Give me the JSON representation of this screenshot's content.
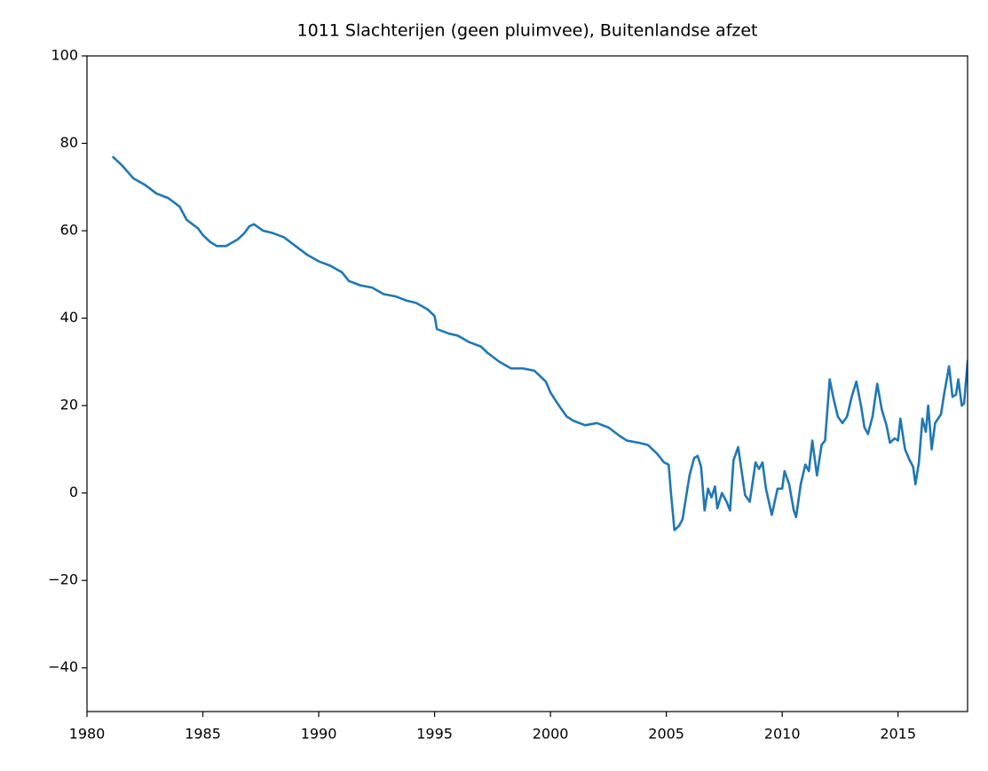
{
  "chart_data": {
    "type": "line",
    "title": "1011 Slachterijen (geen pluimvee), Buitenlandse afzet",
    "x": [
      1981.1,
      1981.5,
      1982,
      1982.5,
      1983,
      1983.5,
      1984,
      1984.3,
      1984.8,
      1985,
      1985.3,
      1985.6,
      1986,
      1986.5,
      1986.8,
      1987,
      1987.2,
      1987.6,
      1988,
      1988.5,
      1989,
      1989.5,
      1990,
      1990.5,
      1991,
      1991.3,
      1991.8,
      1992.3,
      1992.8,
      1993.3,
      1993.8,
      1994.2,
      1994.7,
      1995,
      1995.1,
      1995.6,
      1996,
      1996.5,
      1997,
      1997.3,
      1997.8,
      1998.3,
      1998.8,
      1999.3,
      1999.8,
      2000,
      2000.3,
      2000.7,
      2001,
      2001.5,
      2002,
      2002.5,
      2003,
      2003.3,
      2003.8,
      2004.2,
      2004.6,
      2004.9,
      2005.1,
      2005.2,
      2005.35,
      2005.55,
      2005.7,
      2006,
      2006.2,
      2006.35,
      2006.5,
      2006.65,
      2006.8,
      2006.95,
      2007.1,
      2007.2,
      2007.4,
      2007.6,
      2007.75,
      2007.9,
      2008.1,
      2008.25,
      2008.4,
      2008.6,
      2008.85,
      2009,
      2009.15,
      2009.3,
      2009.55,
      2009.8,
      2010,
      2010.1,
      2010.3,
      2010.5,
      2010.6,
      2010.8,
      2011,
      2011.15,
      2011.3,
      2011.5,
      2011.7,
      2011.85,
      2012.05,
      2012.2,
      2012.4,
      2012.6,
      2012.8,
      2013,
      2013.2,
      2013.4,
      2013.55,
      2013.7,
      2013.9,
      2014.1,
      2014.3,
      2014.5,
      2014.65,
      2014.85,
      2015,
      2015.1,
      2015.3,
      2015.5,
      2015.65,
      2015.75,
      2015.9,
      2016.05,
      2016.2,
      2016.3,
      2016.45,
      2016.6,
      2016.85,
      2017,
      2017.2,
      2017.35,
      2017.5,
      2017.6,
      2017.75,
      2017.85,
      2018,
      2018.1
    ],
    "series": [
      {
        "color": "#1f77b4",
        "values": [
          77,
          75,
          72,
          70.5,
          68.5,
          67.5,
          65.5,
          62.5,
          60.5,
          59,
          57.5,
          56.5,
          56.5,
          58,
          59.5,
          61,
          61.5,
          60,
          59.5,
          58.5,
          56.5,
          54.5,
          53,
          52,
          50.5,
          48.5,
          47.5,
          47,
          45.5,
          45,
          44,
          43.5,
          42,
          40.5,
          37.5,
          36.5,
          36,
          34.5,
          33.5,
          32,
          30,
          28.5,
          28.5,
          28,
          25.5,
          23,
          20.5,
          17.5,
          16.5,
          15.5,
          16,
          15,
          13,
          12,
          11.5,
          11,
          9,
          7,
          6.5,
          0,
          -8.5,
          -7.5,
          -6,
          4,
          8,
          8.5,
          6,
          -4,
          1,
          -1,
          1.5,
          -3.5,
          0,
          -2,
          -4,
          7.5,
          10.5,
          5,
          -0.5,
          -2,
          7,
          5.5,
          7,
          1,
          -5,
          1,
          1,
          5,
          2,
          -4,
          -5.5,
          2,
          6.5,
          5,
          12,
          4,
          11,
          12,
          26,
          22,
          17.5,
          16,
          17.5,
          22,
          25.5,
          20,
          15,
          13.5,
          17.5,
          25,
          19,
          15.5,
          11.5,
          12.5,
          12,
          17,
          10,
          7.5,
          6,
          2,
          7,
          17,
          14,
          20,
          10,
          16,
          18,
          23,
          29,
          22,
          22.5,
          26,
          20,
          20.5,
          30,
          32
        ]
      }
    ],
    "xlim": [
      1980,
      2018
    ],
    "ylim": [
      -50,
      100
    ],
    "xticks": [
      1980,
      1985,
      1990,
      1995,
      2000,
      2005,
      2010,
      2015
    ],
    "yticks": [
      {
        "value": -40,
        "label": "−40"
      },
      {
        "value": -20,
        "label": "−20"
      },
      0,
      20,
      40,
      60,
      80,
      100
    ]
  }
}
